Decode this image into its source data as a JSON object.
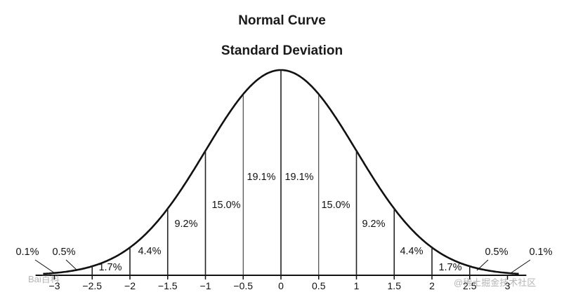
{
  "chart_data": {
    "type": "area",
    "title": "Normal Curve",
    "subtitle": "Standard Deviation",
    "xlabel": "",
    "ylabel": "",
    "xlim": [
      -3.2,
      3.2
    ],
    "ticks": [
      -3,
      -2.5,
      -2,
      -1.5,
      -1,
      -0.5,
      0,
      0.5,
      1,
      1.5,
      2,
      2.5,
      3
    ],
    "tick_labels": [
      "−3",
      "−2.5",
      "−2",
      "−1.5",
      "−1",
      "−0.5",
      "0",
      "0.5",
      "1",
      "1.5",
      "2",
      "2.5",
      "3"
    ],
    "boundaries": [
      -2.5,
      -2,
      -1.5,
      -1,
      -0.5,
      0,
      0.5,
      1,
      1.5,
      2,
      2.5
    ],
    "segments": [
      {
        "from": -3,
        "to": -2.5,
        "label": "0.1%",
        "value": 0.1
      },
      {
        "from": -2.5,
        "to": -2,
        "label": "0.5%",
        "value": 0.5
      },
      {
        "from": -2,
        "to": -1.5,
        "label": "1.7%",
        "value": 1.7
      },
      {
        "from": -1.5,
        "to": -1,
        "label": "4.4%",
        "value": 4.4
      },
      {
        "from": -1,
        "to": -0.5,
        "label": "9.2%",
        "value": 9.2
      },
      {
        "from": -0.5,
        "to": 0,
        "label": "15.0%",
        "value": 15.0
      },
      {
        "from": 0,
        "to": 0.5,
        "label": "19.1%",
        "value": 19.1
      },
      {
        "from": 0.5,
        "to": 1,
        "label": "19.1%",
        "value": 19.1
      },
      {
        "from": 1,
        "to": 1.5,
        "label": "15.0%",
        "value": 15.0
      },
      {
        "from": 1.5,
        "to": 2,
        "label": "9.2%",
        "value": 9.2
      },
      {
        "from": 2,
        "to": 2.5,
        "label": "4.4%",
        "value": 4.4
      },
      {
        "from": 2.5,
        "to": 3,
        "label": "1.7%",
        "value": 1.7
      },
      {
        "from": 3,
        "to": 3.5,
        "label": "0.5%",
        "value": 0.5
      },
      {
        "from": 3.5,
        "to": 4,
        "label": "0.1%",
        "value": 0.1
      }
    ]
  },
  "watermarks": {
    "left": "Bai百科",
    "right": "@稀土掘金技术社区"
  }
}
